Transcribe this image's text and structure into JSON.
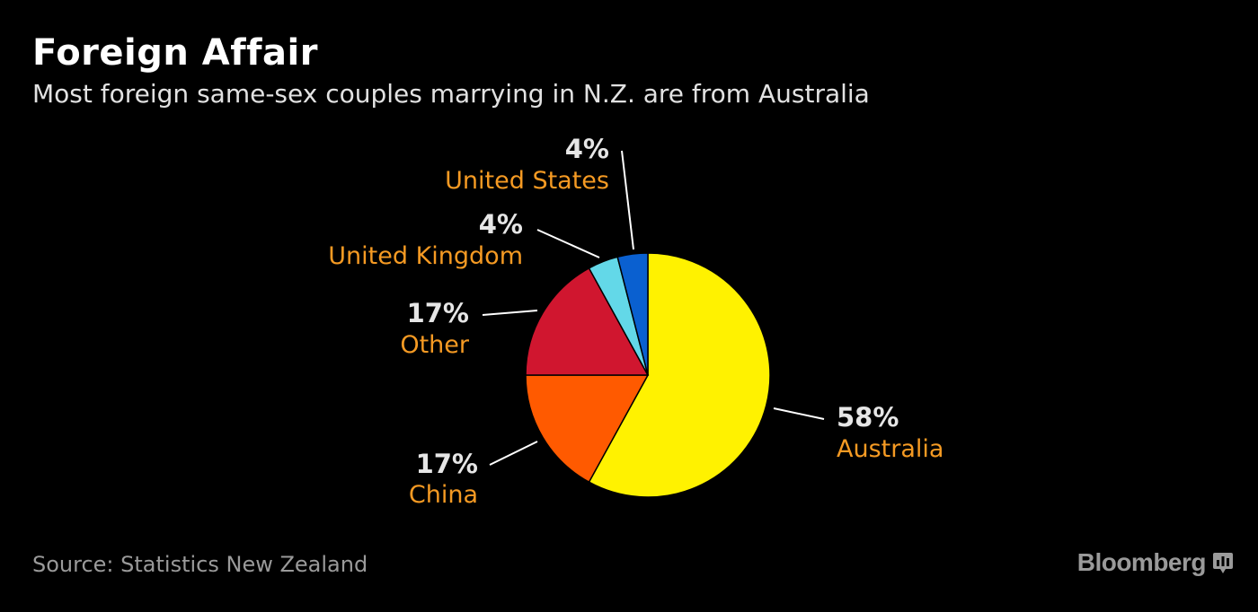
{
  "header": {
    "title": "Foreign Affair",
    "subtitle": "Most foreign same-sex couples marrying in N.Z. are from Australia"
  },
  "footer": {
    "source": "Source: Statistics New Zealand",
    "brand": "Bloomberg"
  },
  "colors": {
    "background": "#000000",
    "label_category": "#f59a23",
    "label_percent": "#e6e6e6",
    "leader_line": "#ffffff"
  },
  "chart_data": {
    "type": "pie",
    "title": "Foreign Affair",
    "subtitle": "Most foreign same-sex couples marrying in N.Z. are from Australia",
    "slices": [
      {
        "label": "Australia",
        "value": 58,
        "value_label": "58%",
        "color": "#fff200"
      },
      {
        "label": "China",
        "value": 17,
        "value_label": "17%",
        "color": "#ff5a00"
      },
      {
        "label": "Other",
        "value": 17,
        "value_label": "17%",
        "color": "#d0162f"
      },
      {
        "label": "United Kingdom",
        "value": 4,
        "value_label": "4%",
        "color": "#63d8e8"
      },
      {
        "label": "United States",
        "value": 4,
        "value_label": "4%",
        "color": "#0a60d0"
      }
    ],
    "start": "12 o'clock",
    "direction": "clockwise",
    "source": "Source: Statistics New Zealand"
  }
}
